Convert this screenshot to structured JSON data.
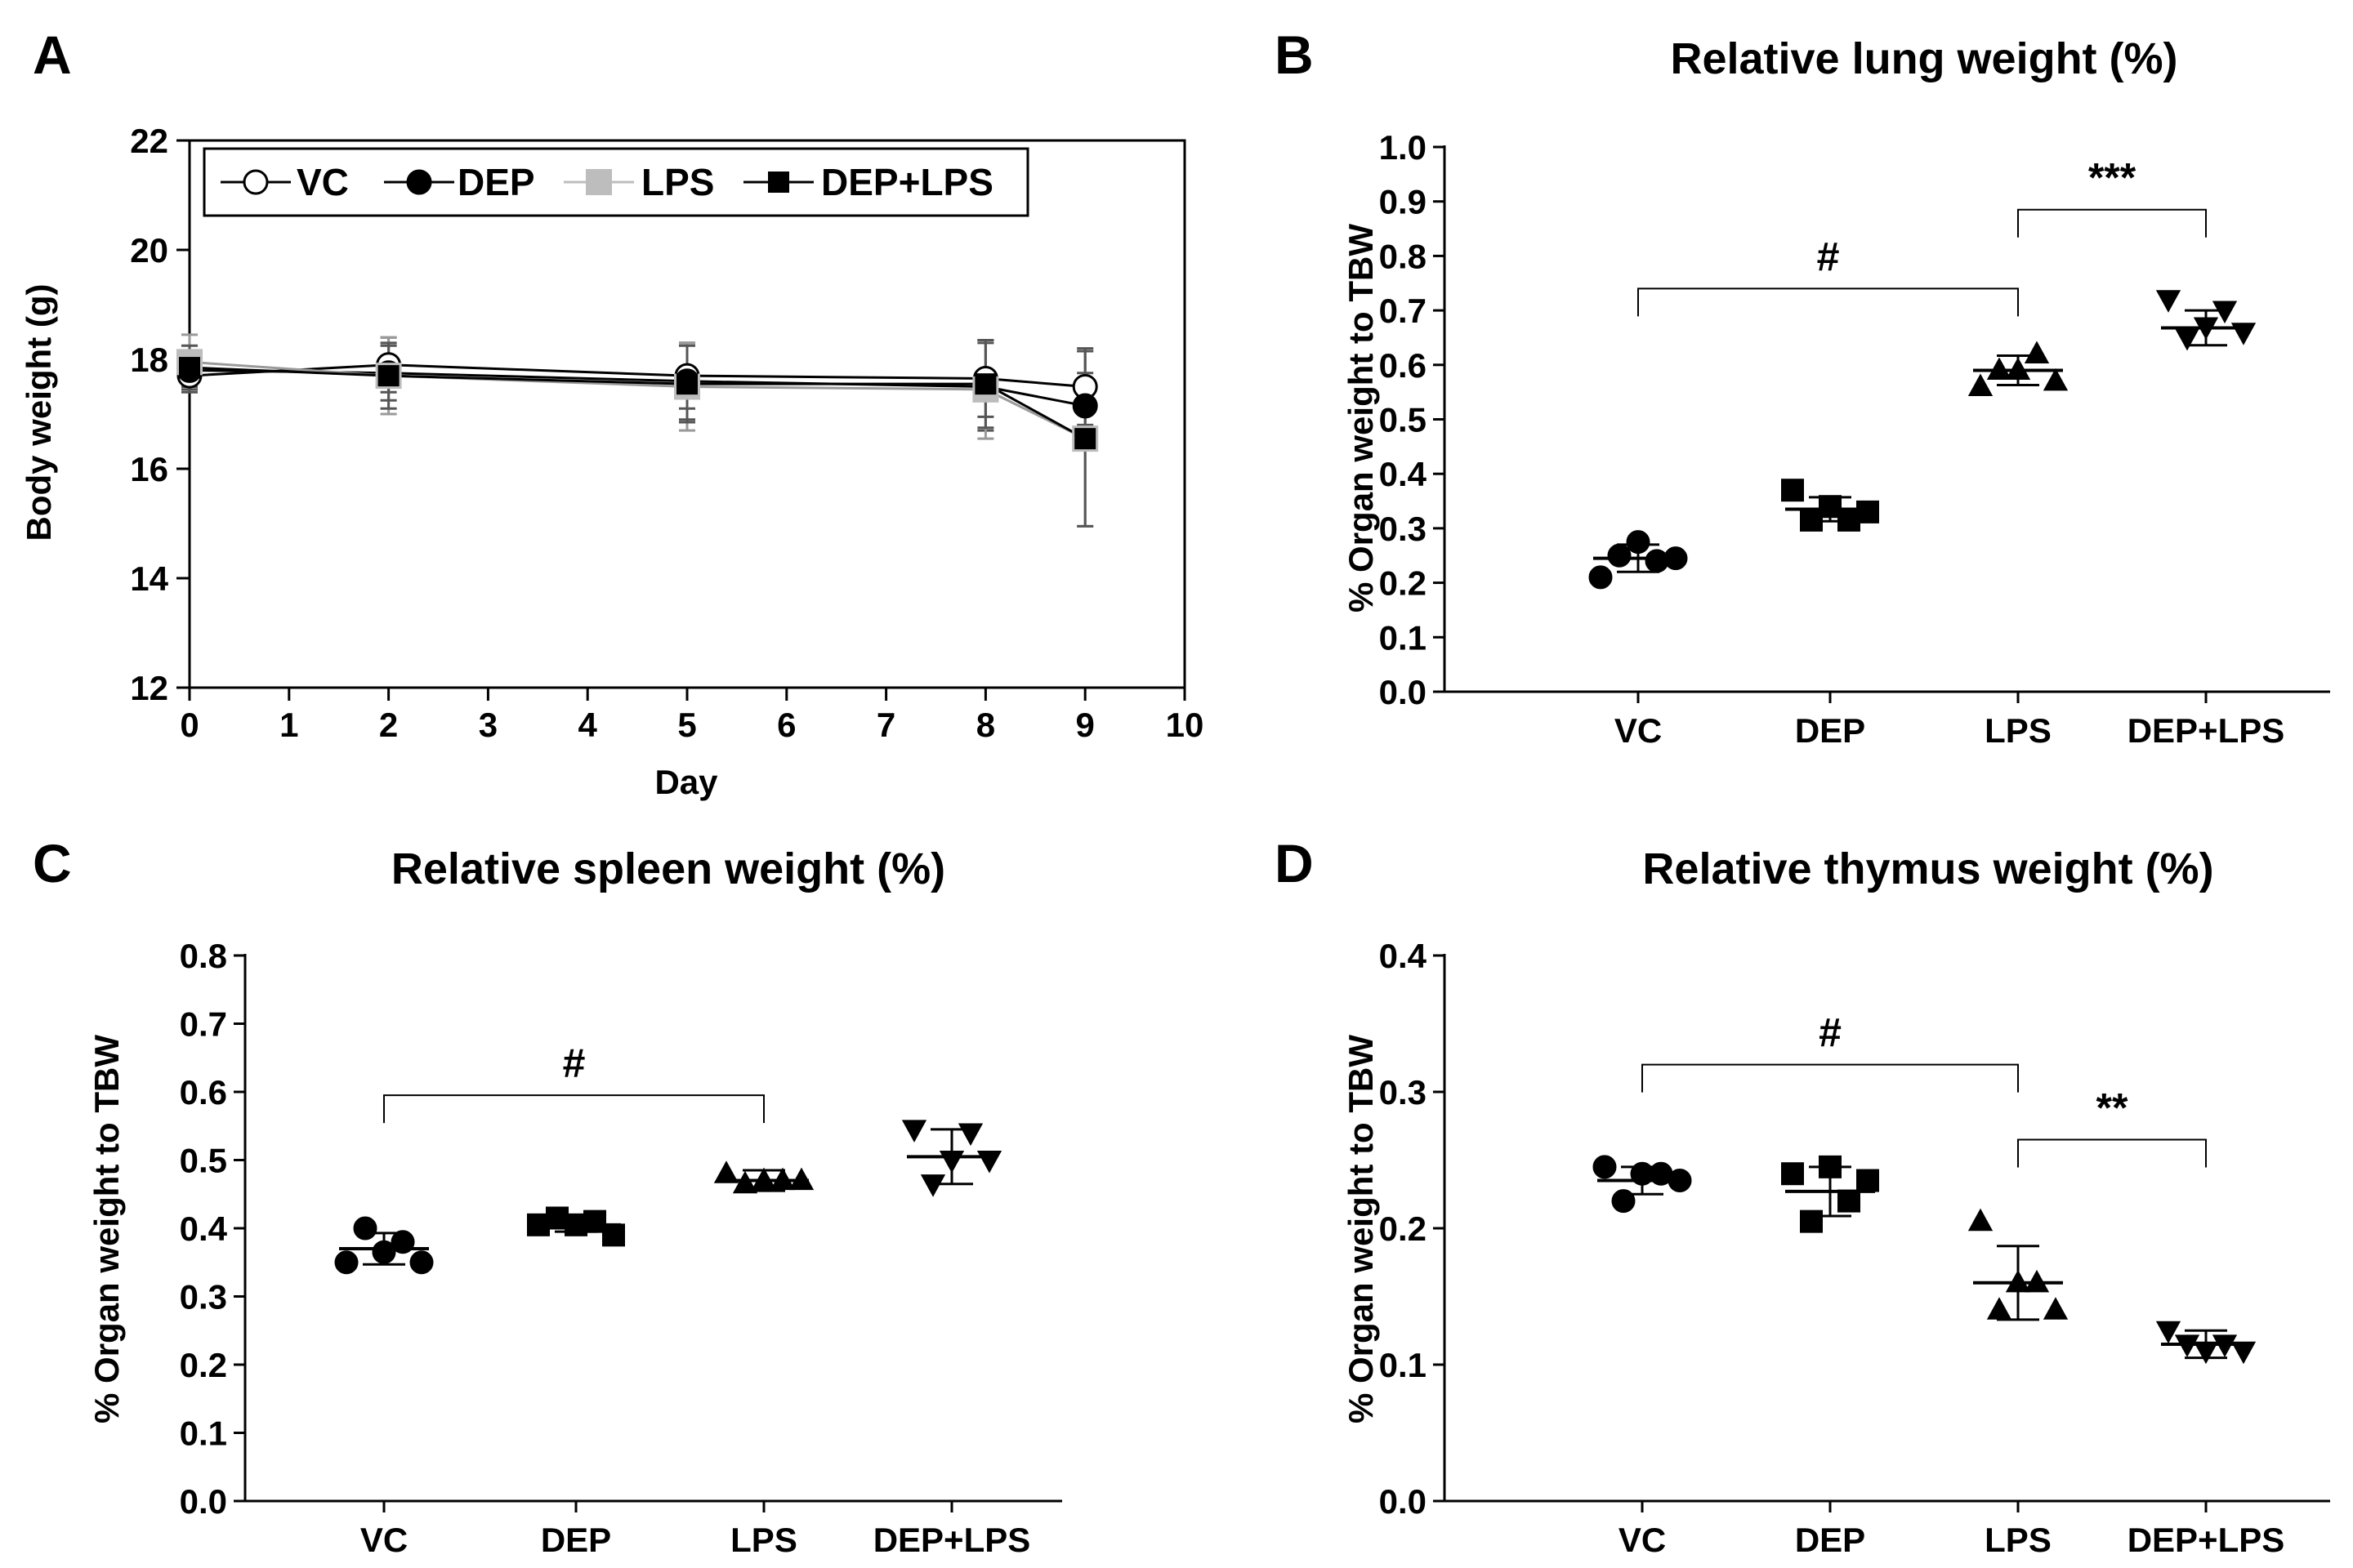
{
  "figure": {
    "panels": [
      {
        "letter": "A",
        "title": ""
      },
      {
        "letter": "B",
        "title": "Relative lung weight (%)"
      },
      {
        "letter": "C",
        "title": "Relative spleen weight (%)"
      },
      {
        "letter": "D",
        "title": "Relative thymus weight (%)"
      }
    ]
  },
  "chart_data": [
    {
      "type": "line",
      "panel": "A",
      "title": "",
      "xlabel": "Day",
      "ylabel": "Body weight (g)",
      "xlim": [
        0,
        10
      ],
      "ylim": [
        12,
        22
      ],
      "xticks": [
        0,
        1,
        2,
        3,
        4,
        5,
        6,
        7,
        8,
        9,
        10
      ],
      "yticks": [
        12,
        14,
        16,
        18,
        20,
        22
      ],
      "legend": "top-left inside, horizontal",
      "grid": false,
      "x": [
        0,
        2,
        5,
        8,
        9
      ],
      "series": [
        {
          "name": "VC",
          "marker": "open-circle",
          "color": "#000000",
          "values": [
            17.7,
            17.9,
            17.7,
            17.65,
            17.5
          ],
          "err": [
            0.3,
            0.5,
            0.6,
            0.7,
            0.7
          ]
        },
        {
          "name": "DEP",
          "marker": "filled-circle",
          "color": "#000000",
          "values": [
            17.8,
            17.75,
            17.6,
            17.5,
            17.15
          ],
          "err": [
            0.3,
            0.5,
            0.7,
            0.8,
            0.6
          ]
        },
        {
          "name": "LPS",
          "marker": "filled-square",
          "color": "#b3b3b3",
          "values": [
            17.95,
            17.7,
            17.5,
            17.45,
            16.55
          ],
          "err": [
            0.5,
            0.7,
            0.8,
            0.9,
            1.6
          ]
        },
        {
          "name": "DEP+LPS",
          "marker": "filled-square",
          "color": "#000000",
          "values": [
            17.85,
            17.7,
            17.55,
            17.55,
            16.55
          ],
          "err": [
            0.4,
            0.6,
            0.7,
            0.8,
            1.6
          ]
        }
      ]
    },
    {
      "type": "scatter",
      "panel": "B",
      "title": "Relative lung weight (%)",
      "xlabel": "",
      "ylabel": "% Organ weight to TBW",
      "ylim": [
        0,
        1.0
      ],
      "yticks": [
        "0.0",
        "0.1",
        "0.2",
        "0.3",
        "0.4",
        "0.5",
        "0.6",
        "0.7",
        "0.8",
        "0.9",
        "1.0"
      ],
      "categories": [
        "VC",
        "DEP",
        "LPS",
        "DEP+LPS"
      ],
      "markers": [
        "circle",
        "square",
        "triangle-up",
        "triangle-down"
      ],
      "points": [
        [
          0.21,
          0.25,
          0.275,
          0.24,
          0.245
        ],
        [
          0.37,
          0.315,
          0.34,
          0.315,
          0.33
        ],
        [
          0.56,
          0.59,
          0.59,
          0.62,
          0.57
        ],
        [
          0.72,
          0.65,
          0.67,
          0.7,
          0.66
        ]
      ],
      "mean": [
        0.245,
        0.335,
        0.59,
        0.668
      ],
      "sd": [
        0.025,
        0.022,
        0.027,
        0.032
      ],
      "significance": [
        {
          "from": 0,
          "to": 2,
          "label": "#",
          "y": 0.74
        },
        {
          "from": 2,
          "to": 3,
          "label": "***",
          "y": 0.885
        }
      ]
    },
    {
      "type": "scatter",
      "panel": "C",
      "title": "Relative spleen weight (%)",
      "xlabel": "",
      "ylabel": "% Organ weight to TBW",
      "ylim": [
        0,
        0.8
      ],
      "yticks": [
        "0.0",
        "0.1",
        "0.2",
        "0.3",
        "0.4",
        "0.5",
        "0.6",
        "0.7",
        "0.8"
      ],
      "categories": [
        "VC",
        "DEP",
        "LPS",
        "DEP+LPS"
      ],
      "markers": [
        "circle",
        "square",
        "triangle-up",
        "triangle-down"
      ],
      "points": [
        [
          0.35,
          0.4,
          0.365,
          0.38,
          0.35
        ],
        [
          0.405,
          0.415,
          0.405,
          0.41,
          0.39
        ],
        [
          0.48,
          0.465,
          0.47,
          0.47,
          0.47
        ],
        [
          0.545,
          0.465,
          0.5,
          0.54,
          0.5
        ]
      ],
      "mean": [
        0.37,
        0.405,
        0.47,
        0.505
      ],
      "sd": [
        0.023,
        0.01,
        0.015,
        0.04
      ],
      "significance": [
        {
          "from": 0,
          "to": 2,
          "label": "#",
          "y": 0.595
        }
      ]
    },
    {
      "type": "scatter",
      "panel": "D",
      "title": "Relative thymus weight (%)",
      "xlabel": "",
      "ylabel": "% Organ weight to TBW",
      "ylim": [
        0,
        0.4
      ],
      "yticks": [
        "0.0",
        "0.1",
        "0.2",
        "0.3",
        "0.4"
      ],
      "categories": [
        "VC",
        "DEP",
        "LPS",
        "DEP+LPS"
      ],
      "markers": [
        "circle",
        "square",
        "triangle-up",
        "triangle-down"
      ],
      "points": [
        [
          0.245,
          0.22,
          0.24,
          0.24,
          0.235
        ],
        [
          0.24,
          0.205,
          0.245,
          0.22,
          0.235
        ],
        [
          0.205,
          0.14,
          0.16,
          0.16,
          0.14
        ],
        [
          0.125,
          0.115,
          0.11,
          0.115,
          0.11
        ]
      ],
      "mean": [
        0.235,
        0.227,
        0.16,
        0.115
      ],
      "sd": [
        0.01,
        0.018,
        0.027,
        0.01
      ],
      "significance": [
        {
          "from": 0,
          "to": 2,
          "label": "#",
          "y": 0.32
        },
        {
          "from": 2,
          "to": 3,
          "label": "**",
          "y": 0.265
        }
      ]
    }
  ]
}
